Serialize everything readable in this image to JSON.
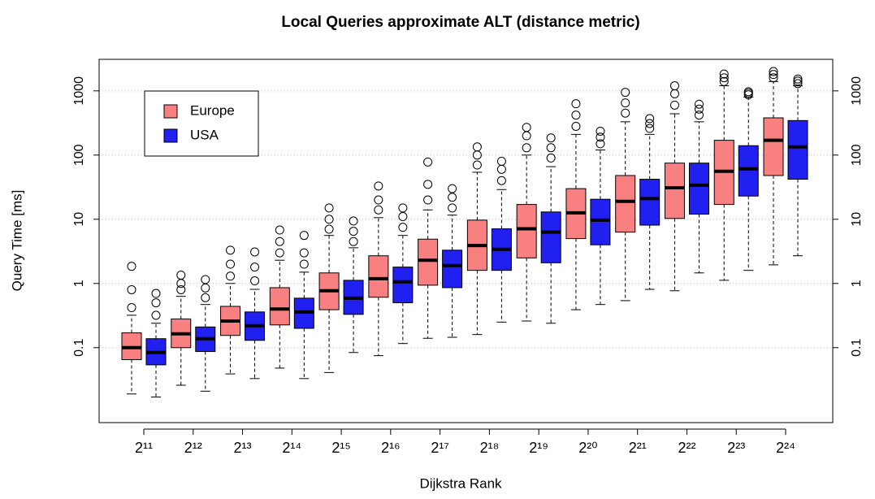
{
  "chart_data": {
    "type": "boxplot",
    "title": "Local Queries approximate ALT (distance metric)",
    "x_label": "Dijkstra Rank",
    "y_label": "Query Time [ms]",
    "categories": [
      "2¹¹",
      "2¹²",
      "2¹³",
      "2¹⁴",
      "2¹⁵",
      "2¹⁶",
      "2¹⁷",
      "2¹⁸",
      "2¹⁹",
      "2²⁰",
      "2²¹",
      "2²²",
      "2²³",
      "2²⁴"
    ],
    "log_y": true,
    "ylim": [
      0.0068,
      3100
    ],
    "yticks": [
      0.1,
      1,
      10,
      100,
      1000
    ],
    "grid": true,
    "legend": "top-left",
    "series": [
      {
        "name": "Europe",
        "color": "#f88080",
        "boxes": [
          {
            "low": 0.019,
            "q1": 0.065,
            "median": 0.1,
            "q3": 0.17,
            "high": 0.32,
            "outliers": [
              0.42,
              0.8,
              1.85
            ]
          },
          {
            "low": 0.026,
            "q1": 0.1,
            "median": 0.164,
            "q3": 0.28,
            "high": 0.63,
            "outliers": [
              0.8,
              1.0,
              1.35
            ]
          },
          {
            "low": 0.039,
            "q1": 0.155,
            "median": 0.26,
            "q3": 0.44,
            "high": 1.0,
            "outliers": [
              1.3,
              2.0,
              3.3
            ]
          },
          {
            "low": 0.048,
            "q1": 0.226,
            "median": 0.4,
            "q3": 0.86,
            "high": 2.3,
            "outliers": [
              3.0,
              4.5,
              6.8
            ]
          },
          {
            "low": 0.041,
            "q1": 0.39,
            "median": 0.77,
            "q3": 1.46,
            "high": 5.6,
            "outliers": [
              7.0,
              10,
              15
            ]
          },
          {
            "low": 0.075,
            "q1": 0.61,
            "median": 1.19,
            "q3": 2.7,
            "high": 10.6,
            "outliers": [
              14,
              20,
              33
            ]
          },
          {
            "low": 0.14,
            "q1": 0.94,
            "median": 2.3,
            "q3": 4.9,
            "high": 14,
            "outliers": [
              20,
              35,
              78
            ]
          },
          {
            "low": 0.16,
            "q1": 1.6,
            "median": 3.9,
            "q3": 9.7,
            "high": 54,
            "outliers": [
              70,
              100,
              134
            ]
          },
          {
            "low": 0.26,
            "q1": 2.5,
            "median": 7.1,
            "q3": 17,
            "high": 100,
            "outliers": [
              130,
              200,
              270
            ]
          },
          {
            "low": 0.39,
            "q1": 5,
            "median": 12.6,
            "q3": 30,
            "high": 210,
            "outliers": [
              280,
              420,
              630
            ]
          },
          {
            "low": 0.54,
            "q1": 6.3,
            "median": 19,
            "q3": 48,
            "high": 330,
            "outliers": [
              450,
              650,
              950
            ]
          },
          {
            "low": 0.77,
            "q1": 10.3,
            "median": 31,
            "q3": 75,
            "high": 440,
            "outliers": [
              600,
              900,
              1200
            ]
          },
          {
            "low": 1.12,
            "q1": 17,
            "median": 56,
            "q3": 170,
            "high": 1200,
            "outliers": [
              1400,
              1600,
              1830
            ]
          },
          {
            "low": 1.95,
            "q1": 48,
            "median": 170,
            "q3": 380,
            "high": 1400,
            "outliers": [
              1600,
              1800,
              2000
            ]
          }
        ]
      },
      {
        "name": "USA",
        "color": "#2020f0",
        "boxes": [
          {
            "low": 0.017,
            "q1": 0.054,
            "median": 0.084,
            "q3": 0.138,
            "high": 0.24,
            "outliers": [
              0.32,
              0.5,
              0.7
            ]
          },
          {
            "low": 0.021,
            "q1": 0.087,
            "median": 0.138,
            "q3": 0.21,
            "high": 0.47,
            "outliers": [
              0.6,
              0.85,
              1.15
            ]
          },
          {
            "low": 0.033,
            "q1": 0.13,
            "median": 0.22,
            "q3": 0.36,
            "high": 0.81,
            "outliers": [
              1.1,
              1.8,
              3.1
            ]
          },
          {
            "low": 0.033,
            "q1": 0.2,
            "median": 0.36,
            "q3": 0.59,
            "high": 1.5,
            "outliers": [
              2.0,
              3.0,
              5.6
            ]
          },
          {
            "low": 0.084,
            "q1": 0.33,
            "median": 0.59,
            "q3": 1.12,
            "high": 3.6,
            "outliers": [
              4.5,
              6.5,
              9.4
            ]
          },
          {
            "low": 0.116,
            "q1": 0.5,
            "median": 1.06,
            "q3": 1.8,
            "high": 5.6,
            "outliers": [
              7.5,
              11,
              15
            ]
          },
          {
            "low": 0.145,
            "q1": 0.86,
            "median": 1.9,
            "q3": 3.3,
            "high": 11.6,
            "outliers": [
              15,
              22,
              30
            ]
          },
          {
            "low": 0.25,
            "q1": 1.6,
            "median": 3.4,
            "q3": 7.1,
            "high": 29,
            "outliers": [
              40,
              60,
              80
            ]
          },
          {
            "low": 0.24,
            "q1": 2.1,
            "median": 6.3,
            "q3": 13,
            "high": 66,
            "outliers": [
              90,
              130,
              185
            ]
          },
          {
            "low": 0.47,
            "q1": 4,
            "median": 9.7,
            "q3": 20.5,
            "high": 120,
            "outliers": [
              150,
              190,
              235
            ]
          },
          {
            "low": 0.81,
            "q1": 8.1,
            "median": 21,
            "q3": 42,
            "high": 210,
            "outliers": [
              260,
              310,
              370
            ]
          },
          {
            "low": 1.46,
            "q1": 12,
            "median": 34,
            "q3": 75,
            "high": 330,
            "outliers": [
              420,
              520,
              620
            ]
          },
          {
            "low": 1.6,
            "q1": 23,
            "median": 61,
            "q3": 140,
            "high": 800,
            "outliers": [
              870,
              920,
              970
            ]
          },
          {
            "low": 2.7,
            "q1": 42,
            "median": 134,
            "q3": 345,
            "high": 1200,
            "outliers": [
              1300,
              1420,
              1530
            ]
          }
        ]
      }
    ]
  }
}
